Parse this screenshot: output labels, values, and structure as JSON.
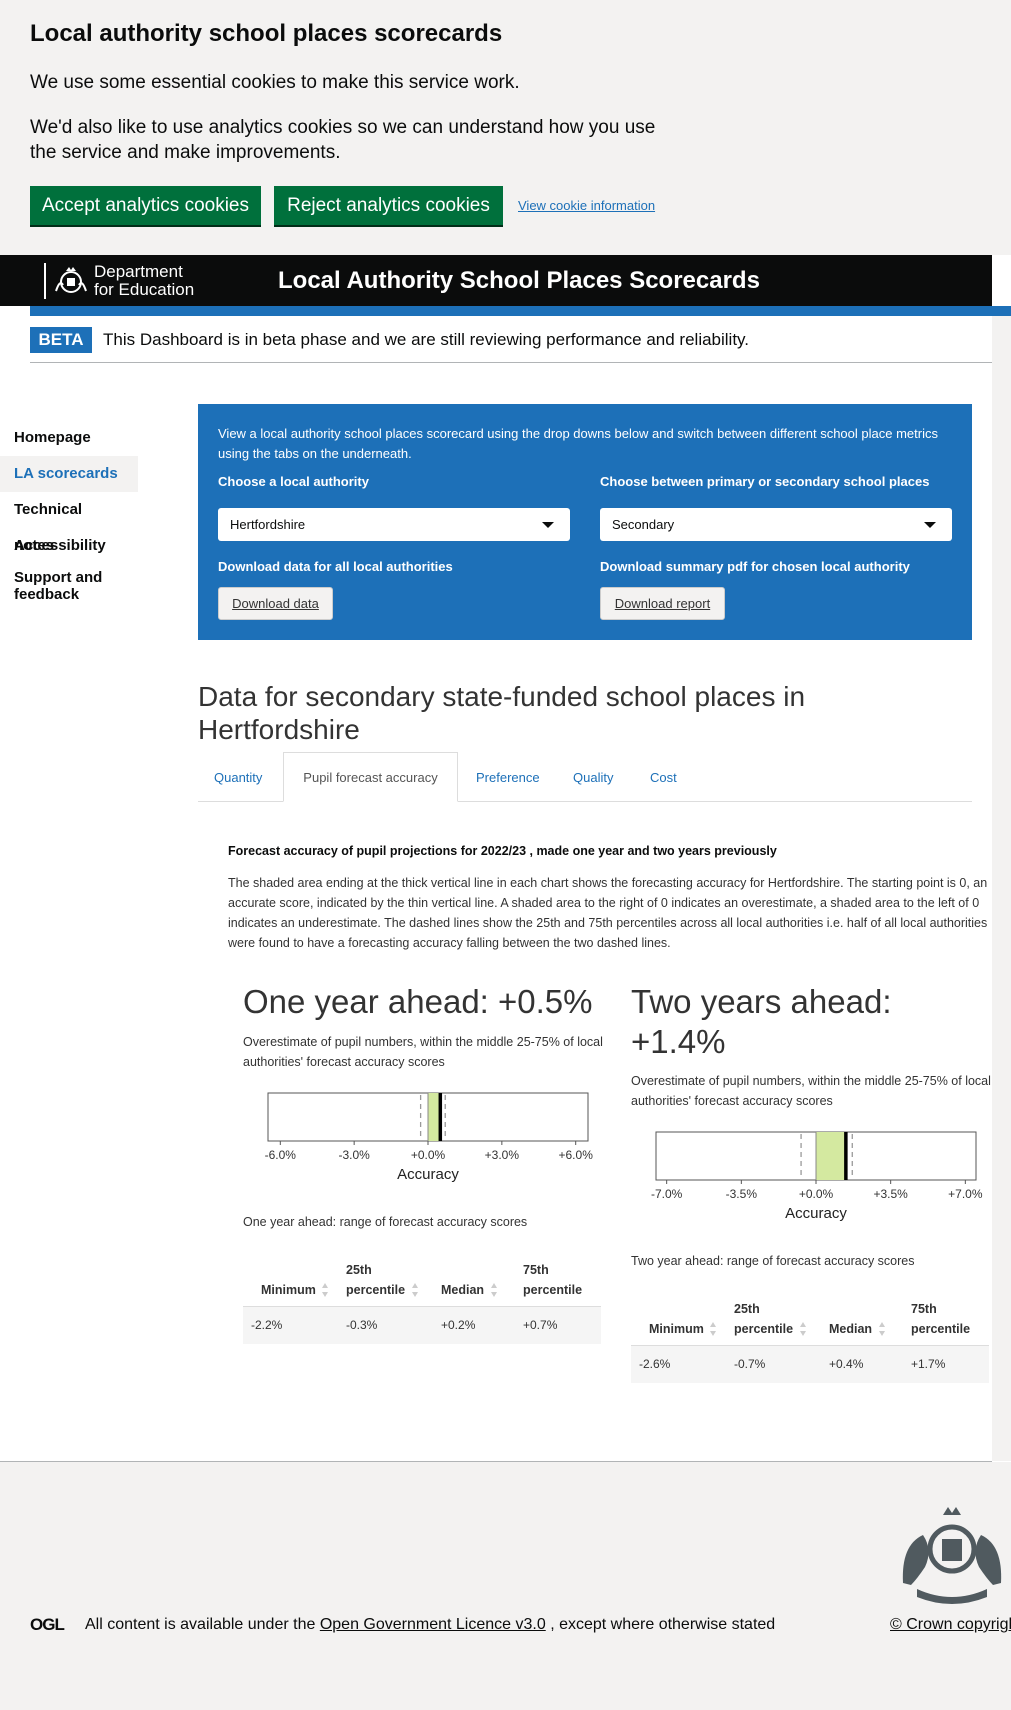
{
  "cookie": {
    "title": "Local authority school places scorecards",
    "text1": "We use some essential cookies to make this service work.",
    "text2": "We'd also like to use analytics cookies so we can understand how you use the service and make improvements.",
    "accept": "Accept analytics cookies",
    "reject": "Reject analytics cookies",
    "info": "View cookie information"
  },
  "header": {
    "dept_line1": "Department",
    "dept_line2": "for Education",
    "title": "Local Authority School Places Scorecards"
  },
  "beta": {
    "tag": "BETA",
    "text": "This Dashboard is in beta phase and we are still reviewing performance and reliability."
  },
  "sidebar": {
    "items": [
      {
        "label": "Homepage"
      },
      {
        "label": "LA scorecards"
      },
      {
        "label": "Technical notes"
      },
      {
        "label": "Accessibility"
      },
      {
        "label": "Support and feedback"
      }
    ]
  },
  "panel": {
    "intro": "View a local authority school places scorecard using the drop downs below and switch between different school place metrics using the tabs on the underneath.",
    "la_label": "Choose a local authority",
    "la_value": "Hertfordshire",
    "phase_label": "Choose between primary or secondary school places",
    "phase_value": "Secondary",
    "dl_all_label": "Download data for all local authorities",
    "dl_all_button": "Download data",
    "dl_pdf_label": "Download summary pdf for chosen local authority",
    "dl_pdf_button": "Download report"
  },
  "main": {
    "heading": "Data for secondary state-funded school places in Hertfordshire",
    "tabs": [
      {
        "label": "Quantity"
      },
      {
        "label": "Pupil forecast accuracy"
      },
      {
        "label": "Preference"
      },
      {
        "label": "Quality"
      },
      {
        "label": "Cost"
      }
    ],
    "desc_title": "Forecast accuracy of pupil projections for 2022/23 , made one year and two years previously",
    "desc": "The shaded area ending at the thick vertical line in each chart shows the forecasting accuracy for Hertfordshire. The starting point is 0, an accurate score, indicated by the thin vertical line. A shaded area to the right of 0 indicates an overestimate, a shaded area to the left of 0 indicates an underestimate. The dashed lines show the 25th and 75th percentiles across all local authorities i.e. half of all local authorities were found to have a forecasting accuracy falling between the two dashed lines."
  },
  "one_year": {
    "heading": "One year ahead: +0.5%",
    "sub": "Overestimate of pupil numbers, within the middle 25-75% of local authorities' forecast accuracy scores",
    "range_label": "One year ahead: range of forecast accuracy scores",
    "headers": [
      "Minimum",
      "25th percentile",
      "Median",
      "75th percentile"
    ],
    "row": [
      "-2.2%",
      "-0.3%",
      "+0.2%",
      "+0.7%"
    ]
  },
  "two_year": {
    "heading": "Two years ahead: +1.4%",
    "sub": "Overestimate of pupil numbers, within the middle 25-75% of local authorities' forecast accuracy scores",
    "range_label": "Two year ahead: range of forecast accuracy scores",
    "headers": [
      "Minimum",
      "25th percentile",
      "Median",
      "75th percentile"
    ],
    "row": [
      "-2.6%",
      "-0.7%",
      "+0.4%",
      "+1.7%"
    ]
  },
  "chart_data": [
    {
      "type": "bar",
      "xlabel": "Accuracy",
      "xlim": [
        -6.5,
        6.5
      ],
      "ticks": [
        "-6.0%",
        "-3.0%",
        "+0.0%",
        "+3.0%",
        "+6.0%"
      ],
      "tick_values": [
        -6,
        -3,
        0,
        3,
        6
      ],
      "value": 0.5,
      "p25": -0.3,
      "p75": 0.7,
      "fill_color": "#d4e9a0"
    },
    {
      "type": "bar",
      "xlabel": "Accuracy",
      "xlim": [
        -7.5,
        7.5
      ],
      "ticks": [
        "-7.0%",
        "-3.5%",
        "+0.0%",
        "+3.5%",
        "+7.0%"
      ],
      "tick_values": [
        -7,
        -3.5,
        0,
        3.5,
        7
      ],
      "value": 1.4,
      "p25": -0.7,
      "p75": 1.7,
      "fill_color": "#d4e9a0"
    }
  ],
  "footer": {
    "ogl": "OGL",
    "prefix": "All content is available under the",
    "link": "Open Government Licence v3.0",
    "suffix": ", except where otherwise stated",
    "copyright": "© Crown copyright"
  }
}
